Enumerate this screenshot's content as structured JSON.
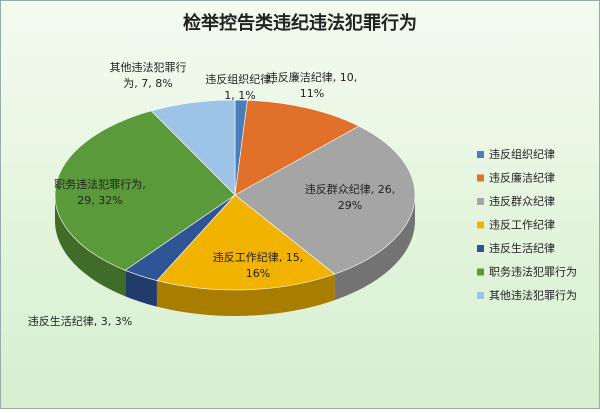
{
  "chart_data": {
    "type": "pie3d",
    "title": "检举控告类违纪违法犯罪行为",
    "categories": [
      "违反组织纪律",
      "违反廉洁纪律",
      "违反群众纪律",
      "违反工作纪律",
      "违反生活纪律",
      "职务违法犯罪行为",
      "其他违法犯罪行为"
    ],
    "values": [
      1,
      10,
      26,
      15,
      3,
      29,
      7
    ],
    "value_labels": [
      [
        "违反组织纪律,",
        "1, 1%"
      ],
      [
        "违反廉洁纪律, 10,",
        "11%"
      ],
      [
        "违反群众纪律, 26,",
        "29%"
      ],
      [
        "违反工作纪律, 15,",
        "16%"
      ],
      [
        "违反生活纪律, 3, 3%"
      ],
      [
        "职务违法犯罪行为,",
        "29, 32%"
      ],
      [
        "其他违法犯罪行",
        "为, 7, 8%"
      ]
    ],
    "colors": [
      "#4a7ebb",
      "#e0702a",
      "#a5a5a5",
      "#f2b300",
      "#2f5597",
      "#5a9a3a",
      "#9dc3e6"
    ],
    "legend": "right"
  }
}
